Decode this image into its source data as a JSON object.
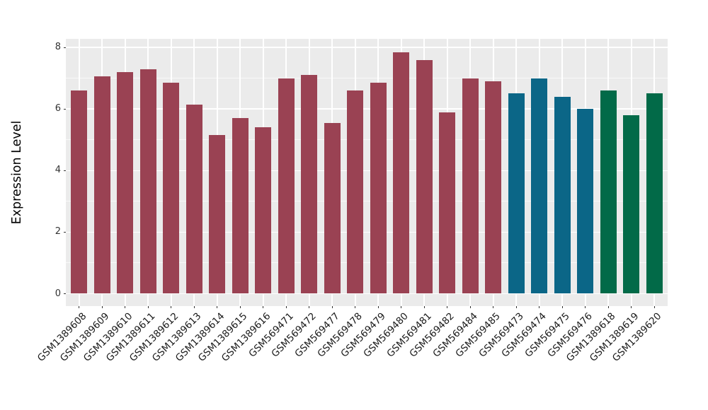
{
  "figure": {
    "background": "#FFFFFF"
  },
  "chart_data": {
    "type": "bar",
    "title": "",
    "xlabel": "",
    "ylabel": "Expression Level",
    "ylim": [
      0,
      8.3
    ],
    "yticks": [
      0,
      2,
      4,
      6,
      8
    ],
    "ytick_labels": [
      "0",
      "2",
      "4",
      "6",
      "8"
    ],
    "yticks_minor": [
      1,
      3,
      5,
      7
    ],
    "grid": "on",
    "legend": "none",
    "panel_background": "#EBEBEB",
    "gridline_color": "#FFFFFF",
    "axis_text_color": "#333333",
    "x_labels_rotation_deg": 45,
    "group_colors": {
      "group1": "#9A4253",
      "group2": "#0B6687",
      "group3": "#026A48"
    },
    "bars": [
      {
        "label": "GSM1389608",
        "value": 6.6,
        "group": "group1"
      },
      {
        "label": "GSM1389609",
        "value": 7.05,
        "group": "group1"
      },
      {
        "label": "GSM1389610",
        "value": 7.2,
        "group": "group1"
      },
      {
        "label": "GSM1389611",
        "value": 7.3,
        "group": "group1"
      },
      {
        "label": "GSM1389612",
        "value": 6.85,
        "group": "group1"
      },
      {
        "label": "GSM1389613",
        "value": 6.15,
        "group": "group1"
      },
      {
        "label": "GSM1389614",
        "value": 5.15,
        "group": "group1"
      },
      {
        "label": "GSM1389615",
        "value": 5.7,
        "group": "group1"
      },
      {
        "label": "GSM1389616",
        "value": 5.4,
        "group": "group1"
      },
      {
        "label": "GSM569471",
        "value": 7.0,
        "group": "group1"
      },
      {
        "label": "GSM569472",
        "value": 7.1,
        "group": "group1"
      },
      {
        "label": "GSM569477",
        "value": 5.55,
        "group": "group1"
      },
      {
        "label": "GSM569478",
        "value": 6.6,
        "group": "group1"
      },
      {
        "label": "GSM569479",
        "value": 6.85,
        "group": "group1"
      },
      {
        "label": "GSM569480",
        "value": 7.85,
        "group": "group1"
      },
      {
        "label": "GSM569481",
        "value": 7.6,
        "group": "group1"
      },
      {
        "label": "GSM569482",
        "value": 5.9,
        "group": "group1"
      },
      {
        "label": "GSM569484",
        "value": 7.0,
        "group": "group1"
      },
      {
        "label": "GSM569485",
        "value": 6.9,
        "group": "group1"
      },
      {
        "label": "GSM569473",
        "value": 6.5,
        "group": "group2"
      },
      {
        "label": "GSM569474",
        "value": 7.0,
        "group": "group2"
      },
      {
        "label": "GSM569475",
        "value": 6.4,
        "group": "group2"
      },
      {
        "label": "GSM569476",
        "value": 6.0,
        "group": "group2"
      },
      {
        "label": "GSM1389618",
        "value": 6.6,
        "group": "group3"
      },
      {
        "label": "GSM1389619",
        "value": 5.8,
        "group": "group3"
      },
      {
        "label": "GSM1389620",
        "value": 6.5,
        "group": "group3"
      }
    ]
  }
}
